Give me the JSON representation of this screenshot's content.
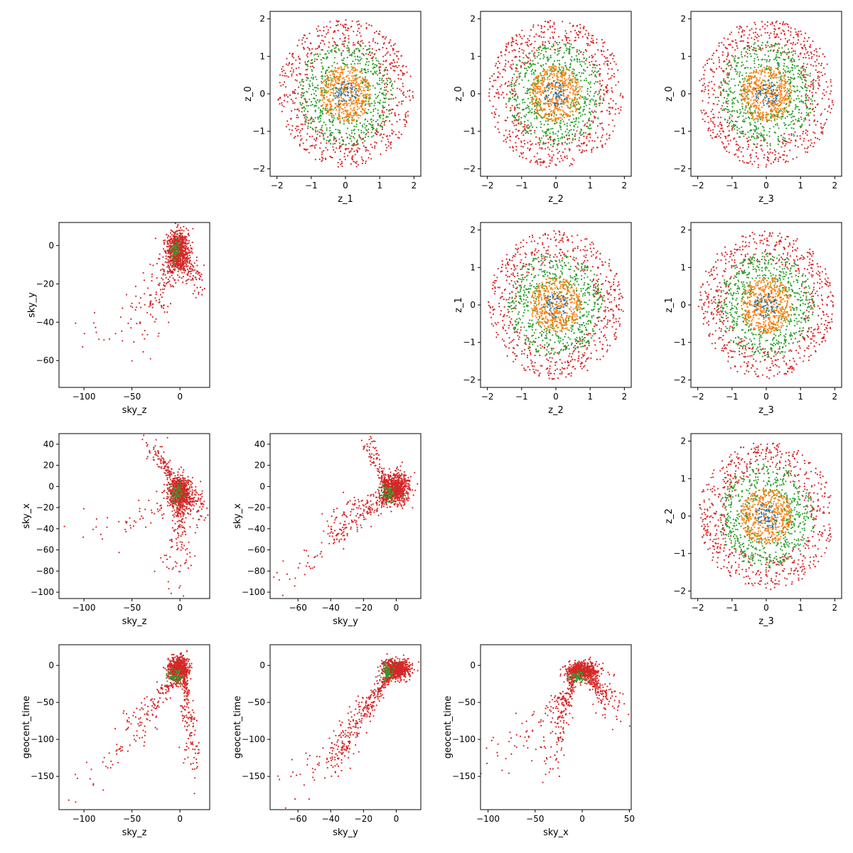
{
  "chart_data": [
    {
      "type": "scatter",
      "row": 0,
      "col": 1,
      "xlabel": "z_1",
      "ylabel": "z_0",
      "xlim": [
        -2.2,
        2.2
      ],
      "ylim": [
        -2.2,
        2.2
      ],
      "xticks": [
        -2,
        -1,
        0,
        1,
        2
      ],
      "yticks": [
        -2,
        -1,
        0,
        1,
        2
      ],
      "generator": "rings",
      "seed": 11
    },
    {
      "type": "scatter",
      "row": 0,
      "col": 2,
      "xlabel": "z_2",
      "ylabel": "z_0",
      "xlim": [
        -2.2,
        2.2
      ],
      "ylim": [
        -2.2,
        2.2
      ],
      "xticks": [
        -2,
        -1,
        0,
        1,
        2
      ],
      "yticks": [
        -2,
        -1,
        0,
        1,
        2
      ],
      "generator": "rings",
      "seed": 12
    },
    {
      "type": "scatter",
      "row": 0,
      "col": 3,
      "xlabel": "z_3",
      "ylabel": "z_0",
      "xlim": [
        -2.2,
        2.2
      ],
      "ylim": [
        -2.2,
        2.2
      ],
      "xticks": [
        -2,
        -1,
        0,
        1,
        2
      ],
      "yticks": [
        -2,
        -1,
        0,
        1,
        2
      ],
      "generator": "rings",
      "seed": 13
    },
    {
      "type": "scatter",
      "row": 1,
      "col": 2,
      "xlabel": "z_2",
      "ylabel": "z_1",
      "xlim": [
        -2.2,
        2.2
      ],
      "ylim": [
        -2.2,
        2.2
      ],
      "xticks": [
        -2,
        -1,
        0,
        1,
        2
      ],
      "yticks": [
        -2,
        -1,
        0,
        1,
        2
      ],
      "generator": "rings",
      "seed": 21
    },
    {
      "type": "scatter",
      "row": 1,
      "col": 3,
      "xlabel": "z_3",
      "ylabel": "z_1",
      "xlim": [
        -2.2,
        2.2
      ],
      "ylim": [
        -2.2,
        2.2
      ],
      "xticks": [
        -2,
        -1,
        0,
        1,
        2
      ],
      "yticks": [
        -2,
        -1,
        0,
        1,
        2
      ],
      "generator": "rings",
      "seed": 22
    },
    {
      "type": "scatter",
      "row": 2,
      "col": 3,
      "xlabel": "z_3",
      "ylabel": "z_2",
      "xlim": [
        -2.2,
        2.2
      ],
      "ylim": [
        -2.2,
        2.2
      ],
      "xticks": [
        -2,
        -1,
        0,
        1,
        2
      ],
      "yticks": [
        -2,
        -1,
        0,
        1,
        2
      ],
      "generator": "rings",
      "seed": 31
    },
    {
      "type": "scatter",
      "row": 1,
      "col": 0,
      "xlabel": "sky_z",
      "ylabel": "sky_y",
      "xlim": [
        -126,
        31
      ],
      "ylim": [
        -74,
        12
      ],
      "xticks": [
        -100,
        -50,
        0
      ],
      "yticks": [
        -60,
        -40,
        -20,
        0
      ],
      "generator": "skyzy",
      "seed": 41
    },
    {
      "type": "scatter",
      "row": 2,
      "col": 0,
      "xlabel": "sky_z",
      "ylabel": "sky_x",
      "xlim": [
        -126,
        31
      ],
      "ylim": [
        -106,
        50
      ],
      "xticks": [
        -100,
        -50,
        0
      ],
      "yticks": [
        -100,
        -80,
        -60,
        -40,
        -20,
        0,
        20,
        40
      ],
      "generator": "skyzx",
      "seed": 51
    },
    {
      "type": "scatter",
      "row": 2,
      "col": 1,
      "xlabel": "sky_y",
      "ylabel": "sky_x",
      "xlim": [
        -77,
        15
      ],
      "ylim": [
        -106,
        50
      ],
      "xticks": [
        -60,
        -40,
        -20,
        0
      ],
      "yticks": [
        -100,
        -80,
        -60,
        -40,
        -20,
        0,
        20,
        40
      ],
      "generator": "skyyx",
      "seed": 52
    },
    {
      "type": "scatter",
      "row": 3,
      "col": 0,
      "xlabel": "sky_z",
      "ylabel": "geocent_time",
      "xlim": [
        -126,
        31
      ],
      "ylim": [
        -195,
        28
      ],
      "xticks": [
        -100,
        -50,
        0
      ],
      "yticks": [
        -150,
        -100,
        -50,
        0
      ],
      "generator": "timez",
      "seed": 61
    },
    {
      "type": "scatter",
      "row": 3,
      "col": 1,
      "xlabel": "sky_y",
      "ylabel": "geocent_time",
      "xlim": [
        -77,
        15
      ],
      "ylim": [
        -195,
        28
      ],
      "xticks": [
        -60,
        -40,
        -20,
        0
      ],
      "yticks": [
        -150,
        -100,
        -50,
        0
      ],
      "generator": "timey",
      "seed": 62
    },
    {
      "type": "scatter",
      "row": 3,
      "col": 2,
      "xlabel": "sky_x",
      "ylabel": "geocent_time",
      "xlim": [
        -108,
        52
      ],
      "ylim": [
        -195,
        28
      ],
      "xticks": [
        -100,
        -50,
        0,
        50
      ],
      "yticks": [
        -150,
        -100,
        -50,
        0
      ],
      "generator": "timex",
      "seed": 63
    }
  ],
  "colors": {
    "blue": "#1f77b4",
    "orange": "#ff7f0e",
    "green": "#2ca02c",
    "red": "#d62728",
    "axis": "#000000",
    "background": "#ffffff"
  }
}
